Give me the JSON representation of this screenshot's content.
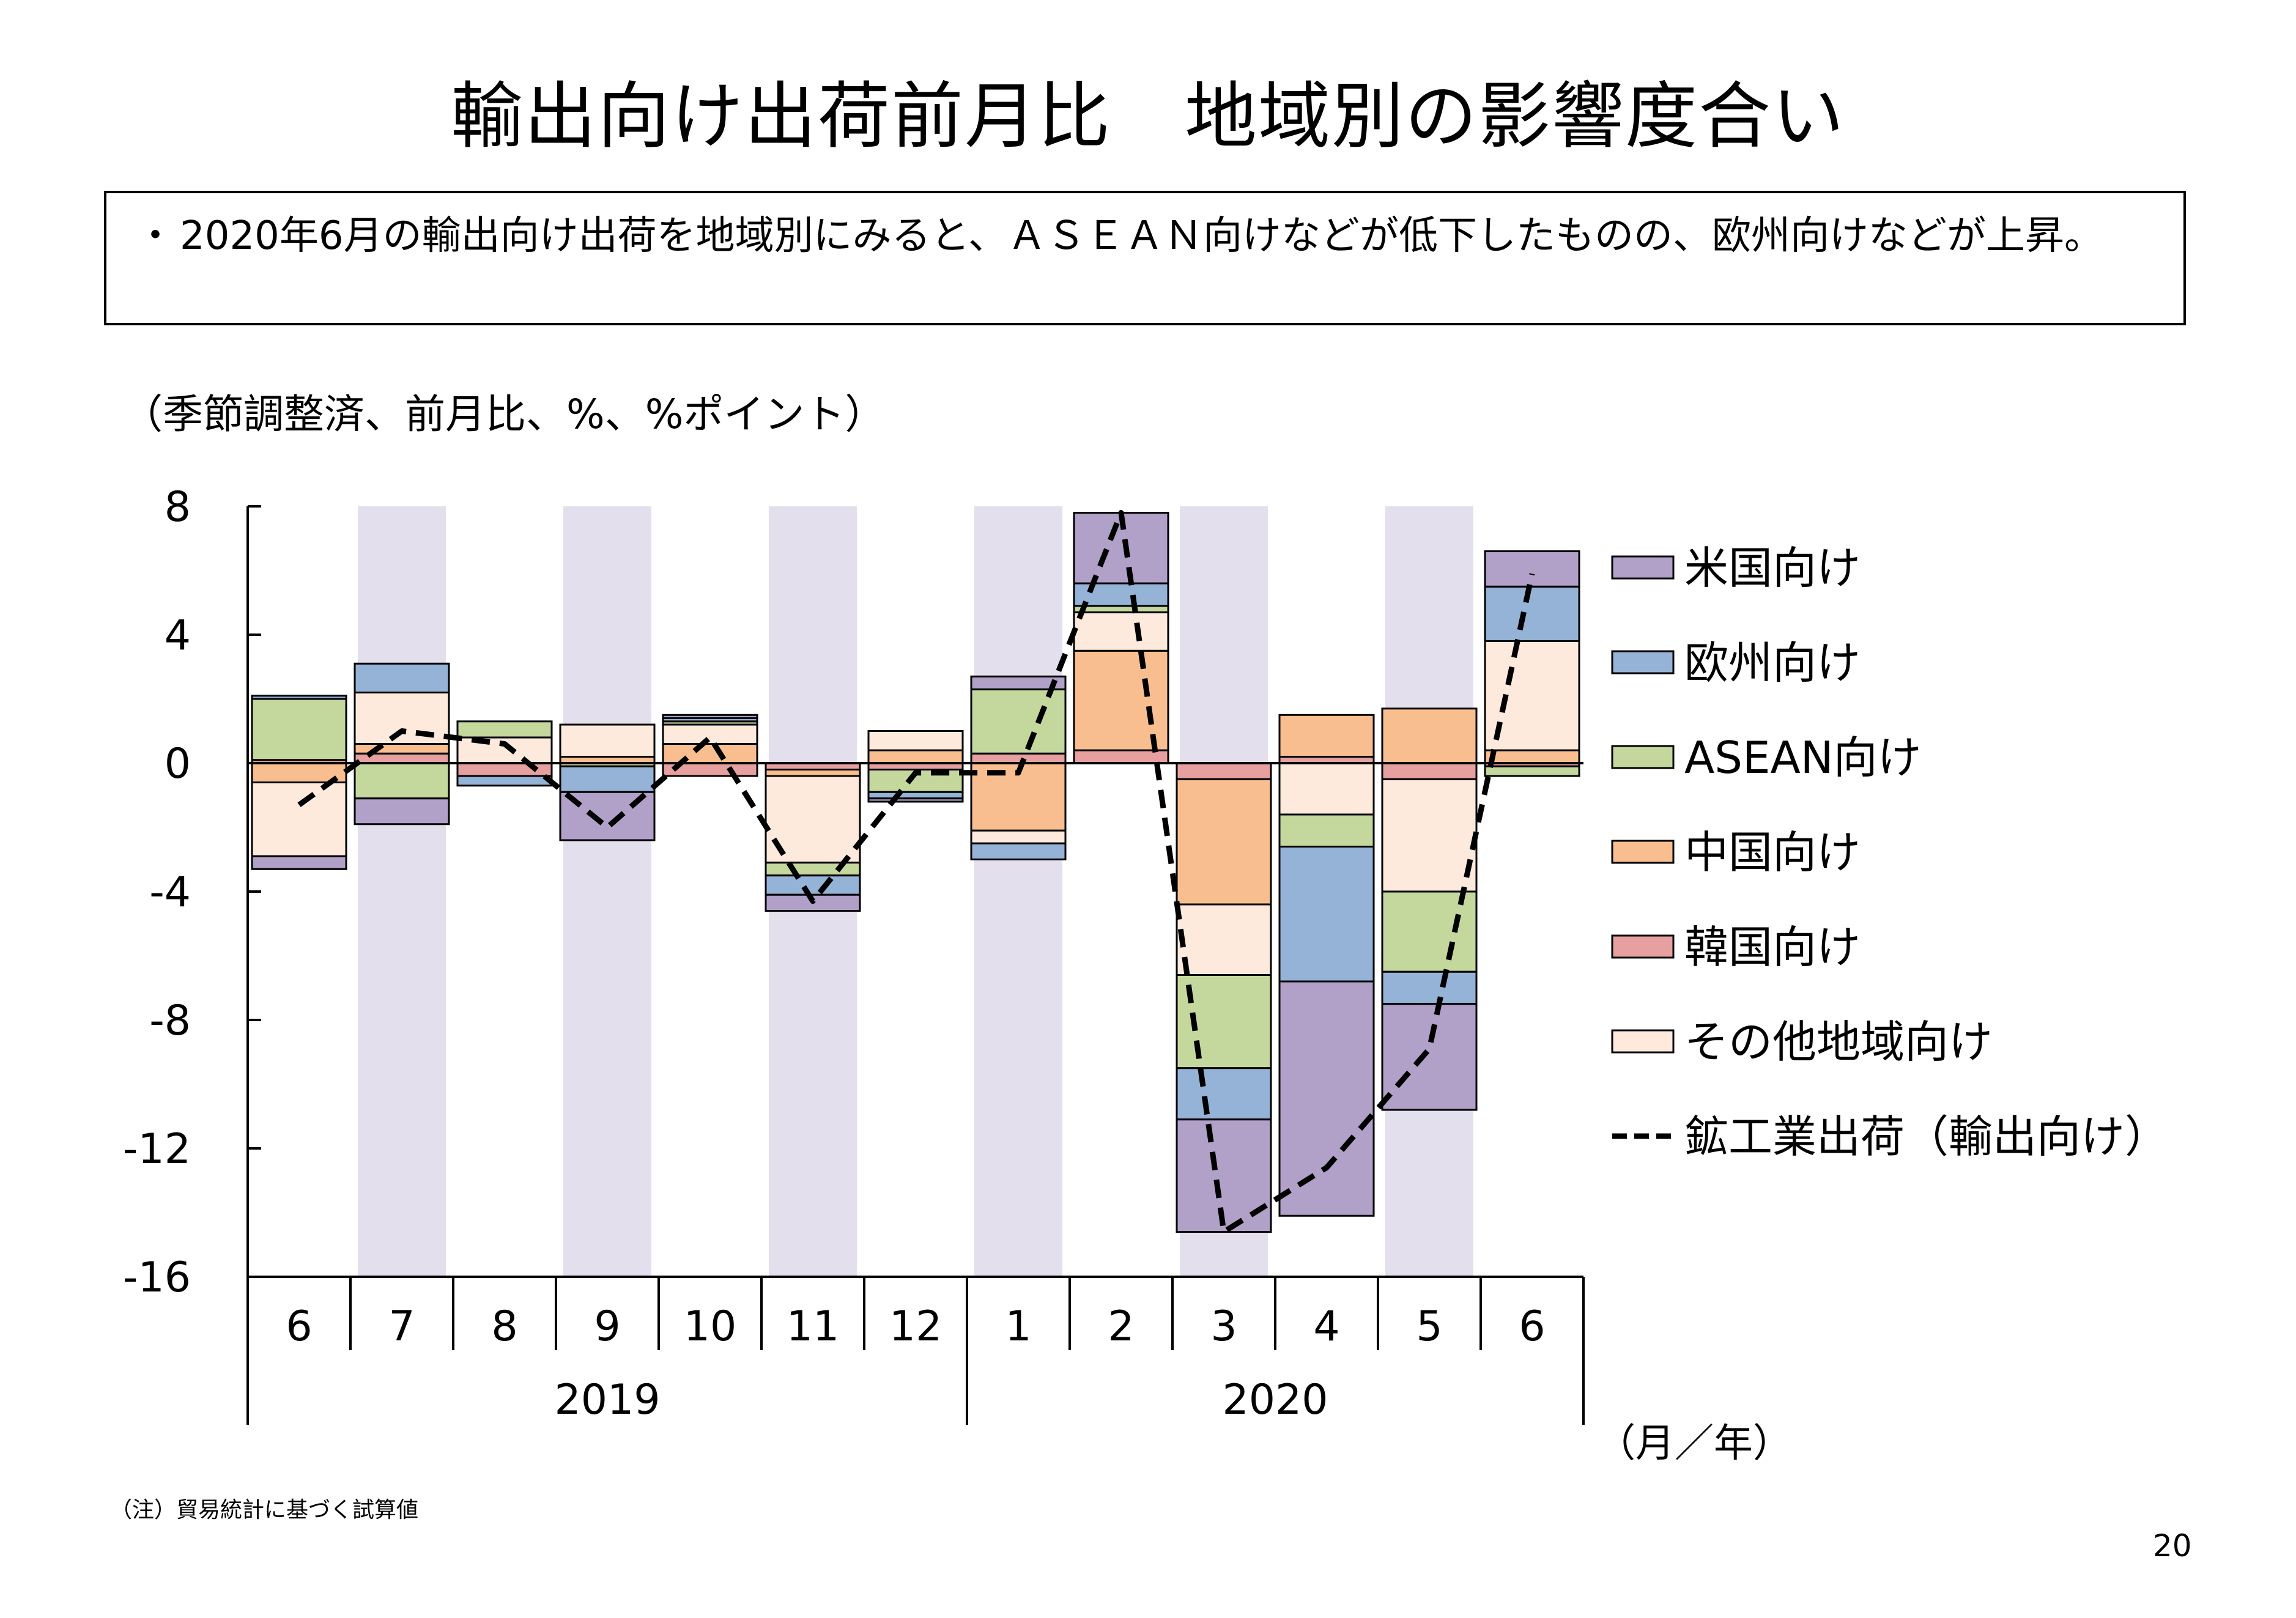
{
  "title": "輸出向け出荷前月比　地域別の影響度合い",
  "summary": {
    "bullet": "・",
    "text": "2020年6月の輸出向け出荷を地域別にみると、ＡＳＥＡＮ向けなどが低下したものの、欧州向けなどが上昇。"
  },
  "units_label": "（季節調整済、前月比、%、%ポイント）",
  "axis_unit_label": "（月／年）",
  "note": "（注）貿易統計に基づく試算値",
  "page_number": "20",
  "chart_data": {
    "type": "bar",
    "stacked": true,
    "categories": [
      "6",
      "7",
      "8",
      "9",
      "10",
      "11",
      "12",
      "1",
      "2",
      "3",
      "4",
      "5",
      "6"
    ],
    "year_groups": [
      {
        "label": "2019",
        "from": 0,
        "to": 6
      },
      {
        "label": "2020",
        "from": 7,
        "to": 12
      }
    ],
    "shaded_categories": [
      1,
      3,
      5,
      7,
      9,
      11
    ],
    "ylim": [
      -16,
      8
    ],
    "yticks": [
      8,
      4,
      0,
      -4,
      -8,
      -12,
      -16
    ],
    "ytick_labels": [
      "8",
      "4",
      "0",
      "-4",
      "-8",
      "-12",
      "-16"
    ],
    "legend_position": "right",
    "series": [
      {
        "name": "韓国向け",
        "color": "#e6a0a0",
        "values": [
          0.1,
          0.3,
          -0.4,
          0.0,
          -0.4,
          -0.2,
          -0.2,
          0.3,
          0.4,
          -0.5,
          0.2,
          -0.5,
          -0.1
        ]
      },
      {
        "name": "中国向け",
        "color": "#f9be8f",
        "values": [
          -0.6,
          0.3,
          0.0,
          0.2,
          0.6,
          -0.2,
          0.4,
          -2.1,
          3.1,
          -3.9,
          1.3,
          1.7,
          0.4
        ]
      },
      {
        "name": "その他地域向け",
        "color": "#fdeadd",
        "values": [
          -2.3,
          1.6,
          0.8,
          1.0,
          0.6,
          -2.7,
          0.6,
          -0.4,
          1.2,
          -2.2,
          -1.6,
          -3.5,
          3.4
        ]
      },
      {
        "name": "ASEAN向け",
        "color": "#c4d89e",
        "values": [
          1.9,
          -1.1,
          0.5,
          -0.1,
          0.1,
          -0.4,
          -0.7,
          2.0,
          0.2,
          -2.9,
          -1.0,
          -2.5,
          -0.3
        ]
      },
      {
        "name": "欧州向け",
        "color": "#95b3d7",
        "values": [
          0.1,
          0.9,
          -0.3,
          -0.8,
          0.1,
          -0.6,
          -0.2,
          -0.5,
          0.7,
          -1.6,
          -4.2,
          -1.0,
          1.7
        ]
      },
      {
        "name": "米国向け",
        "color": "#b1a0c7",
        "values": [
          -0.4,
          -0.8,
          0.0,
          -1.5,
          0.1,
          -0.5,
          -0.1,
          0.4,
          2.2,
          -3.5,
          -7.3,
          -3.3,
          1.1
        ]
      }
    ],
    "legend_order": [
      "米国向け",
      "欧州向け",
      "ASEAN向け",
      "中国向け",
      "韓国向け",
      "その他地域向け"
    ],
    "line": {
      "name": "鉱工業出荷（輸出向け）",
      "style": "dashed",
      "color": "#000000",
      "values": [
        -1.3,
        1.0,
        0.6,
        -2.0,
        0.8,
        -4.3,
        -0.3,
        -0.3,
        7.8,
        -14.6,
        -12.6,
        -8.9,
        5.9
      ]
    }
  }
}
